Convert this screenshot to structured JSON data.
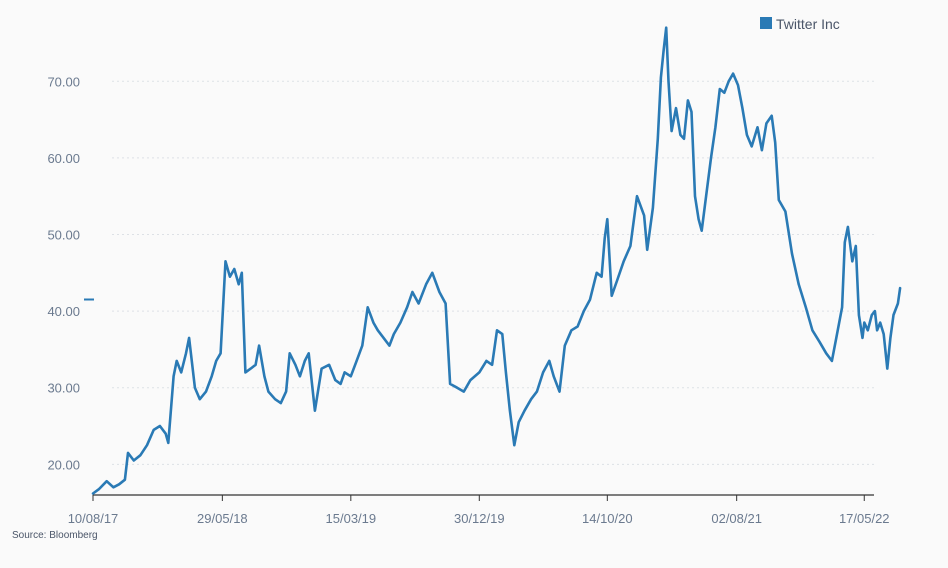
{
  "chart_data": {
    "type": "line",
    "title": "",
    "xlabel": "",
    "ylabel": "",
    "legend": {
      "placement": "top-right"
    },
    "grid": {
      "horizontal": true,
      "vertical": false,
      "style": "dotted"
    },
    "ylim": [
      16,
      78
    ],
    "xlim": [
      "2017-08-10",
      "2022-06-08"
    ],
    "y_ticks": [
      {
        "value": 20,
        "label": "20.00"
      },
      {
        "value": 30,
        "label": "30.00"
      },
      {
        "value": 40,
        "label": "40.00"
      },
      {
        "value": 50,
        "label": "50.00"
      },
      {
        "value": 60,
        "label": "60.00"
      },
      {
        "value": 70,
        "label": "70.00"
      }
    ],
    "x_ticks": [
      {
        "date": "2017-08-10",
        "label": "10/08/17"
      },
      {
        "date": "2018-05-29",
        "label": "29/05/18"
      },
      {
        "date": "2019-03-15",
        "label": "15/03/19"
      },
      {
        "date": "2019-12-30",
        "label": "30/12/19"
      },
      {
        "date": "2020-10-14",
        "label": "14/10/20"
      },
      {
        "date": "2021-08-02",
        "label": "02/08/21"
      },
      {
        "date": "2022-05-17",
        "label": "17/05/22"
      }
    ],
    "series": [
      {
        "name": "Twitter Inc",
        "color": "#2a7ab5",
        "points": [
          [
            "2017-08-10",
            16.2
          ],
          [
            "2017-08-24",
            16.8
          ],
          [
            "2017-09-10",
            17.8
          ],
          [
            "2017-09-25",
            17.0
          ],
          [
            "2017-10-08",
            17.4
          ],
          [
            "2017-10-21",
            18.0
          ],
          [
            "2017-10-28",
            21.5
          ],
          [
            "2017-11-10",
            20.5
          ],
          [
            "2017-11-25",
            21.2
          ],
          [
            "2017-12-10",
            22.5
          ],
          [
            "2017-12-25",
            24.5
          ],
          [
            "2018-01-08",
            25.0
          ],
          [
            "2018-01-21",
            24.0
          ],
          [
            "2018-01-27",
            22.8
          ],
          [
            "2018-02-08",
            31.5
          ],
          [
            "2018-02-15",
            33.5
          ],
          [
            "2018-02-25",
            32.0
          ],
          [
            "2018-03-08",
            34.5
          ],
          [
            "2018-03-15",
            36.5
          ],
          [
            "2018-03-28",
            30.0
          ],
          [
            "2018-04-08",
            28.5
          ],
          [
            "2018-04-22",
            29.5
          ],
          [
            "2018-05-05",
            31.5
          ],
          [
            "2018-05-15",
            33.5
          ],
          [
            "2018-05-25",
            34.5
          ],
          [
            "2018-06-05",
            46.5
          ],
          [
            "2018-06-15",
            44.5
          ],
          [
            "2018-06-25",
            45.5
          ],
          [
            "2018-07-05",
            43.5
          ],
          [
            "2018-07-12",
            45.0
          ],
          [
            "2018-07-20",
            32.0
          ],
          [
            "2018-08-01",
            32.5
          ],
          [
            "2018-08-12",
            33.0
          ],
          [
            "2018-08-20",
            35.5
          ],
          [
            "2018-09-01",
            31.5
          ],
          [
            "2018-09-10",
            29.5
          ],
          [
            "2018-09-25",
            28.5
          ],
          [
            "2018-10-08",
            28.0
          ],
          [
            "2018-10-20",
            29.5
          ],
          [
            "2018-10-28",
            34.5
          ],
          [
            "2018-11-10",
            33.0
          ],
          [
            "2018-11-20",
            31.5
          ],
          [
            "2018-12-01",
            33.5
          ],
          [
            "2018-12-10",
            34.5
          ],
          [
            "2018-12-24",
            27.0
          ],
          [
            "2019-01-08",
            32.5
          ],
          [
            "2019-01-25",
            33.0
          ],
          [
            "2019-02-08",
            31.0
          ],
          [
            "2019-02-20",
            30.5
          ],
          [
            "2019-03-01",
            32.0
          ],
          [
            "2019-03-15",
            31.5
          ],
          [
            "2019-03-28",
            33.5
          ],
          [
            "2019-04-10",
            35.5
          ],
          [
            "2019-04-22",
            40.5
          ],
          [
            "2019-05-05",
            38.5
          ],
          [
            "2019-05-15",
            37.5
          ],
          [
            "2019-05-28",
            36.5
          ],
          [
            "2019-06-10",
            35.5
          ],
          [
            "2019-06-20",
            37.0
          ],
          [
            "2019-07-05",
            38.5
          ],
          [
            "2019-07-20",
            40.5
          ],
          [
            "2019-08-01",
            42.5
          ],
          [
            "2019-08-15",
            41.0
          ],
          [
            "2019-09-01",
            43.5
          ],
          [
            "2019-09-15",
            45.0
          ],
          [
            "2019-10-01",
            42.5
          ],
          [
            "2019-10-15",
            41.0
          ],
          [
            "2019-10-25",
            30.5
          ],
          [
            "2019-11-10",
            30.0
          ],
          [
            "2019-11-25",
            29.5
          ],
          [
            "2019-12-10",
            31.0
          ],
          [
            "2019-12-30",
            32.0
          ],
          [
            "2020-01-15",
            33.5
          ],
          [
            "2020-01-28",
            33.0
          ],
          [
            "2020-02-08",
            37.5
          ],
          [
            "2020-02-20",
            37.0
          ],
          [
            "2020-02-28",
            32.0
          ],
          [
            "2020-03-08",
            27.0
          ],
          [
            "2020-03-18",
            22.5
          ],
          [
            "2020-03-28",
            25.5
          ],
          [
            "2020-04-10",
            27.0
          ],
          [
            "2020-04-25",
            28.5
          ],
          [
            "2020-05-08",
            29.5
          ],
          [
            "2020-05-22",
            32.0
          ],
          [
            "2020-06-05",
            33.5
          ],
          [
            "2020-06-15",
            31.5
          ],
          [
            "2020-06-28",
            29.5
          ],
          [
            "2020-07-10",
            35.5
          ],
          [
            "2020-07-25",
            37.5
          ],
          [
            "2020-08-08",
            38.0
          ],
          [
            "2020-08-22",
            40.0
          ],
          [
            "2020-09-05",
            41.5
          ],
          [
            "2020-09-20",
            45.0
          ],
          [
            "2020-10-01",
            44.5
          ],
          [
            "2020-10-08",
            49.5
          ],
          [
            "2020-10-14",
            52.0
          ],
          [
            "2020-10-24",
            42.0
          ],
          [
            "2020-11-05",
            44.0
          ],
          [
            "2020-11-20",
            46.5
          ],
          [
            "2020-12-05",
            48.5
          ],
          [
            "2020-12-20",
            55.0
          ],
          [
            "2021-01-05",
            52.5
          ],
          [
            "2021-01-12",
            48.0
          ],
          [
            "2021-01-25",
            53.5
          ],
          [
            "2021-02-05",
            62.5
          ],
          [
            "2021-02-12",
            70.5
          ],
          [
            "2021-02-18",
            74.0
          ],
          [
            "2021-02-24",
            77.0
          ],
          [
            "2021-03-01",
            70.0
          ],
          [
            "2021-03-08",
            63.5
          ],
          [
            "2021-03-18",
            66.5
          ],
          [
            "2021-03-28",
            63.0
          ],
          [
            "2021-04-05",
            62.5
          ],
          [
            "2021-04-14",
            67.5
          ],
          [
            "2021-04-22",
            66.0
          ],
          [
            "2021-04-30",
            55.0
          ],
          [
            "2021-05-08",
            52.0
          ],
          [
            "2021-05-15",
            50.5
          ],
          [
            "2021-05-25",
            55.0
          ],
          [
            "2021-06-05",
            60.0
          ],
          [
            "2021-06-15",
            64.0
          ],
          [
            "2021-06-25",
            69.0
          ],
          [
            "2021-07-05",
            68.5
          ],
          [
            "2021-07-15",
            70.0
          ],
          [
            "2021-07-25",
            71.0
          ],
          [
            "2021-08-05",
            69.5
          ],
          [
            "2021-08-15",
            66.5
          ],
          [
            "2021-08-25",
            63.0
          ],
          [
            "2021-09-05",
            61.5
          ],
          [
            "2021-09-18",
            64.0
          ],
          [
            "2021-09-28",
            61.0
          ],
          [
            "2021-10-08",
            64.5
          ],
          [
            "2021-10-20",
            65.5
          ],
          [
            "2021-10-28",
            62.0
          ],
          [
            "2021-11-05",
            54.5
          ],
          [
            "2021-11-20",
            53.0
          ],
          [
            "2021-12-05",
            47.5
          ],
          [
            "2021-12-20",
            43.5
          ],
          [
            "2022-01-05",
            40.5
          ],
          [
            "2022-01-20",
            37.5
          ],
          [
            "2022-02-05",
            36.0
          ],
          [
            "2022-02-20",
            34.5
          ],
          [
            "2022-03-05",
            33.5
          ],
          [
            "2022-03-15",
            36.5
          ],
          [
            "2022-03-28",
            40.5
          ],
          [
            "2022-04-03",
            49.0
          ],
          [
            "2022-04-10",
            51.0
          ],
          [
            "2022-04-20",
            46.5
          ],
          [
            "2022-04-28",
            48.5
          ],
          [
            "2022-05-05",
            39.5
          ],
          [
            "2022-05-13",
            36.5
          ],
          [
            "2022-05-17",
            38.5
          ],
          [
            "2022-05-25",
            37.5
          ],
          [
            "2022-06-03",
            39.5
          ],
          [
            "2022-06-10",
            40.0
          ],
          [
            "2022-06-15",
            37.5
          ],
          [
            "2022-06-22",
            38.5
          ],
          [
            "2022-06-30",
            37.0
          ],
          [
            "2022-07-08",
            32.5
          ],
          [
            "2022-07-15",
            36.5
          ],
          [
            "2022-07-22",
            39.5
          ],
          [
            "2022-08-01",
            41.0
          ],
          [
            "2022-08-06",
            43.0
          ]
        ]
      }
    ]
  },
  "source": "Source: Bloomberg"
}
